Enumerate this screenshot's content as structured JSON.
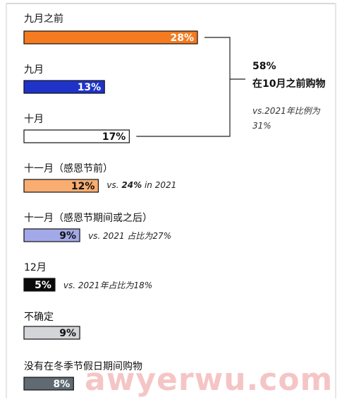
{
  "chart_data": {
    "type": "bar",
    "orientation": "horizontal",
    "xlim": [
      0,
      28
    ],
    "categories": [
      "九月之前",
      "九月",
      "十月",
      "十一月（感恩节前）",
      "十一月（感恩节期间或之后）",
      "12月",
      "不确定",
      "没有在冬季节假日期间购物"
    ],
    "values": [
      28,
      13,
      17,
      12,
      9,
      5,
      9,
      8
    ],
    "value_labels": [
      "28%",
      "13%",
      "17%",
      "12%",
      "9%",
      "5%",
      "9%",
      "8%"
    ],
    "colors": [
      "#f47b20",
      "#1f33c9",
      "#ffffff",
      "#f9ad71",
      "#a3a9e8",
      "#0a0a0a",
      "#d3d5d8",
      "#5f6a72"
    ],
    "label_colors": [
      "#ffffff",
      "#ffffff",
      "#111111",
      "#111111",
      "#111111",
      "#ffffff",
      "#111111",
      "#ffffff"
    ],
    "notes": [
      "",
      "",
      "",
      "vs. 24% in 2021",
      "vs. 2021 占比为27%",
      "vs. 2021年占比为18%",
      "",
      ""
    ],
    "callout": {
      "percent": "58%",
      "text": "在10月之前购物",
      "note_line1": "vs.2021年比例为",
      "note_line2": "31%"
    }
  },
  "watermark": "awyerwu.com"
}
